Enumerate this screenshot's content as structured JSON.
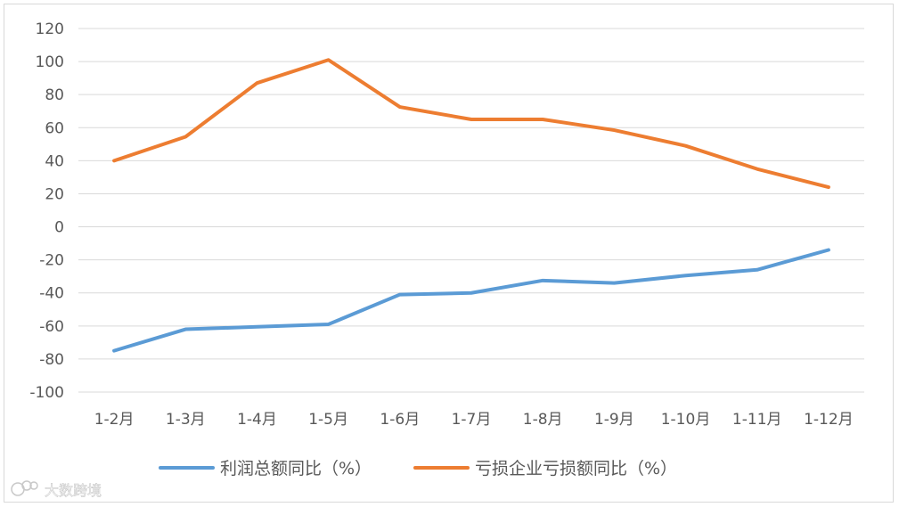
{
  "chart_data": {
    "type": "line",
    "title": "",
    "xlabel": "",
    "ylabel": "",
    "categories": [
      "1-2月",
      "1-3月",
      "1-4月",
      "1-5月",
      "1-6月",
      "1-7月",
      "1-8月",
      "1-9月",
      "1-10月",
      "1-11月",
      "1-12月"
    ],
    "ylim": [
      -100,
      120
    ],
    "yticks": [
      120,
      100,
      80,
      60,
      40,
      20,
      0,
      -20,
      -40,
      -60,
      -80,
      -100
    ],
    "grid": true,
    "legend_position": "bottom",
    "series": [
      {
        "name": "利润总额同比（%）",
        "color": "#5b9bd5",
        "values": [
          -75,
          -62,
          -60.5,
          -59,
          -41,
          -40,
          -32.5,
          -34,
          -29.5,
          -26,
          -14
        ]
      },
      {
        "name": "亏损企业亏损额同比（%）",
        "color": "#ed7d31",
        "values": [
          40,
          54.5,
          87,
          101,
          72.5,
          65,
          65,
          58.5,
          49,
          35,
          24
        ]
      }
    ]
  },
  "watermark": {
    "text": "大数跨境"
  }
}
